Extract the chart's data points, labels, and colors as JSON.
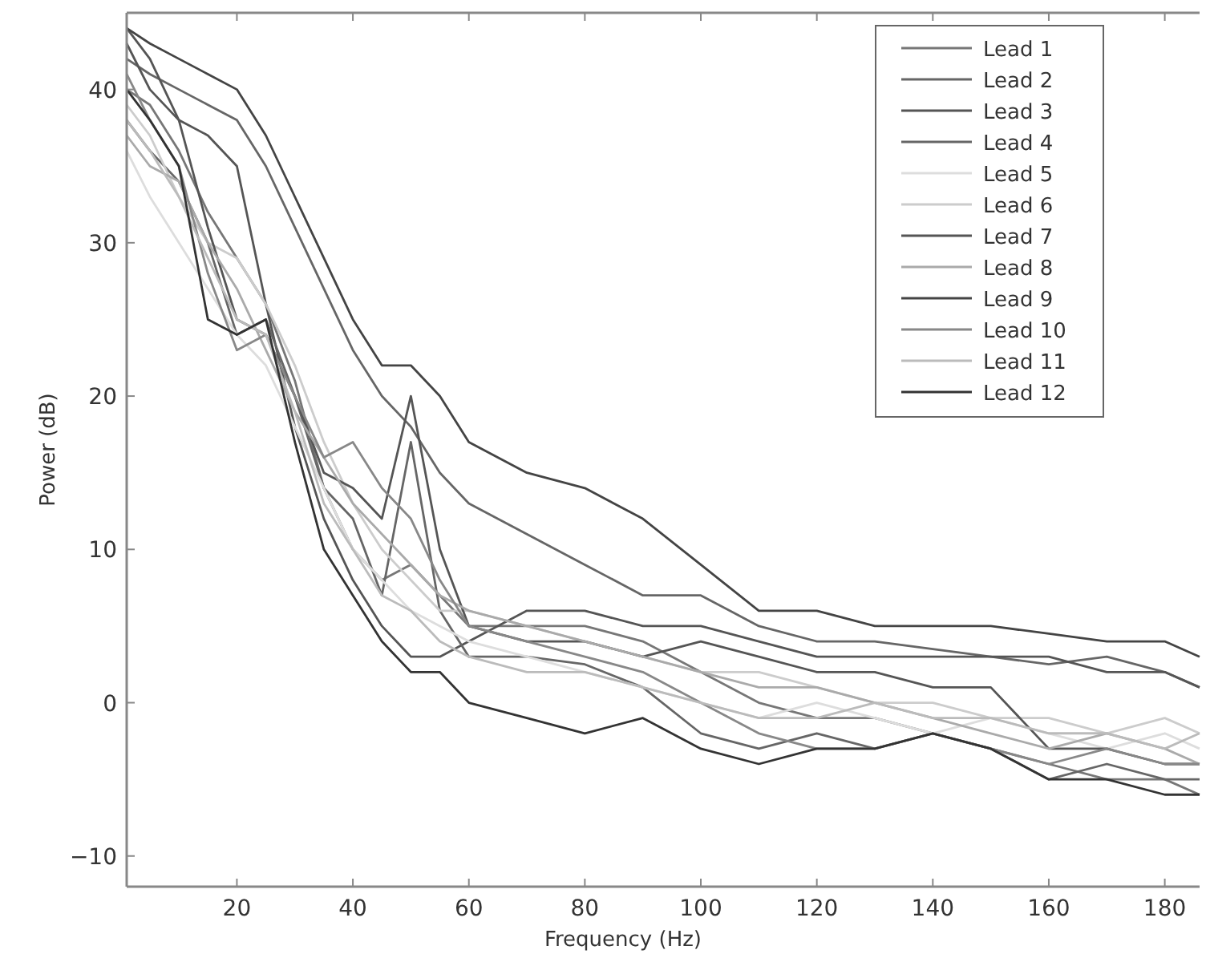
{
  "chart_data": {
    "type": "line",
    "xlabel": "Frequency (Hz)",
    "ylabel": "Power (dB)",
    "x": [
      1,
      5,
      10,
      15,
      20,
      25,
      30,
      35,
      40,
      45,
      50,
      55,
      60,
      70,
      80,
      90,
      100,
      110,
      120,
      130,
      140,
      150,
      160,
      170,
      180,
      186
    ],
    "xlim": [
      1,
      186
    ],
    "xticks": [
      20,
      40,
      60,
      80,
      100,
      120,
      140,
      160,
      180
    ],
    "ylim": [
      -12,
      45
    ],
    "yticks": [
      -10,
      0,
      10,
      20,
      30,
      40
    ],
    "grid": false,
    "legend": "top right",
    "line_style": "solid",
    "marker": "none",
    "series": [
      {
        "name": "Lead 1",
        "color": "#777777",
        "values": [
          40,
          39,
          36,
          32,
          29,
          26,
          21,
          14,
          10,
          8,
          9,
          7,
          5,
          5,
          5,
          4,
          2,
          0,
          -1,
          -1,
          -2,
          -3,
          -4,
          -5,
          -5,
          -6
        ]
      },
      {
        "name": "Lead 2",
        "color": "#666666",
        "values": [
          42,
          41,
          40,
          39,
          38,
          35,
          31,
          27,
          23,
          20,
          18,
          15,
          13,
          11,
          9,
          7,
          7,
          5,
          4,
          4,
          3.5,
          3,
          2.5,
          3,
          2,
          1
        ]
      },
      {
        "name": "Lead 3",
        "color": "#555555",
        "values": [
          43,
          40,
          38,
          37,
          35,
          26,
          18,
          12,
          8,
          5,
          3,
          3,
          4,
          6,
          6,
          5,
          5,
          4,
          3,
          3,
          3,
          3,
          3,
          2,
          2,
          1
        ]
      },
      {
        "name": "Lead 4",
        "color": "#666666",
        "values": [
          38,
          36,
          34,
          30,
          24,
          25,
          20,
          14,
          12,
          7,
          17,
          6,
          3,
          3,
          2.5,
          1,
          -2,
          -3,
          -2,
          -3,
          -2,
          -3,
          -5,
          -4,
          -5,
          -5
        ]
      },
      {
        "name": "Lead 5",
        "color": "#dddddd",
        "values": [
          36,
          33,
          30,
          27,
          24,
          22,
          18,
          14,
          10,
          8,
          6,
          5,
          4,
          3,
          2,
          1,
          0,
          -1,
          0,
          -1,
          -2,
          -1,
          -2,
          -3,
          -2,
          -3
        ]
      },
      {
        "name": "Lead 6",
        "color": "#cccccc",
        "values": [
          39,
          37,
          33,
          30,
          29,
          26,
          22,
          17,
          13,
          10,
          8,
          6,
          6,
          5,
          4,
          3,
          2,
          2,
          1,
          0,
          0,
          -1,
          -1,
          -2,
          -1,
          -2
        ]
      },
      {
        "name": "Lead 7",
        "color": "#555555",
        "values": [
          44,
          42,
          38,
          31,
          25,
          24,
          20,
          15,
          14,
          12,
          20,
          10,
          5,
          4,
          4,
          3,
          4,
          3,
          2,
          2,
          1,
          1,
          -3,
          -3,
          -4,
          -4
        ]
      },
      {
        "name": "Lead 8",
        "color": "#aaaaaa",
        "values": [
          37,
          35,
          34,
          30,
          27,
          23,
          19,
          16,
          13,
          11,
          9,
          7,
          6,
          5,
          4,
          3,
          2,
          1,
          1,
          0,
          -1,
          -2,
          -3,
          -2,
          -3,
          -4
        ]
      },
      {
        "name": "Lead 9",
        "color": "#444444",
        "values": [
          44,
          43,
          42,
          41,
          40,
          37,
          33,
          29,
          25,
          22,
          22,
          20,
          17,
          15,
          14,
          12,
          9,
          6,
          6,
          5,
          5,
          5,
          4.5,
          4,
          4,
          3
        ]
      },
      {
        "name": "Lead 10",
        "color": "#888888",
        "values": [
          41,
          38,
          35,
          28,
          23,
          24,
          20,
          16,
          17,
          14,
          12,
          8,
          5,
          4,
          3,
          2,
          0,
          -2,
          -3,
          -3,
          -2,
          -3,
          -4,
          -3,
          -4,
          -4
        ]
      },
      {
        "name": "Lead 11",
        "color": "#bbbbbb",
        "values": [
          38,
          36,
          33,
          29,
          25,
          24,
          19,
          13,
          10,
          7,
          6,
          4,
          3,
          2,
          2,
          1,
          0,
          -1,
          -1,
          0,
          -1,
          -1,
          -2,
          -2,
          -3,
          -2
        ]
      },
      {
        "name": "Lead 12",
        "color": "#333333",
        "values": [
          40,
          38,
          35,
          25,
          24,
          25,
          17,
          10,
          7,
          4,
          2,
          2,
          0,
          -1,
          -2,
          -1,
          -3,
          -4,
          -3,
          -3,
          -2,
          -3,
          -5,
          -5,
          -6,
          -6
        ]
      }
    ]
  }
}
